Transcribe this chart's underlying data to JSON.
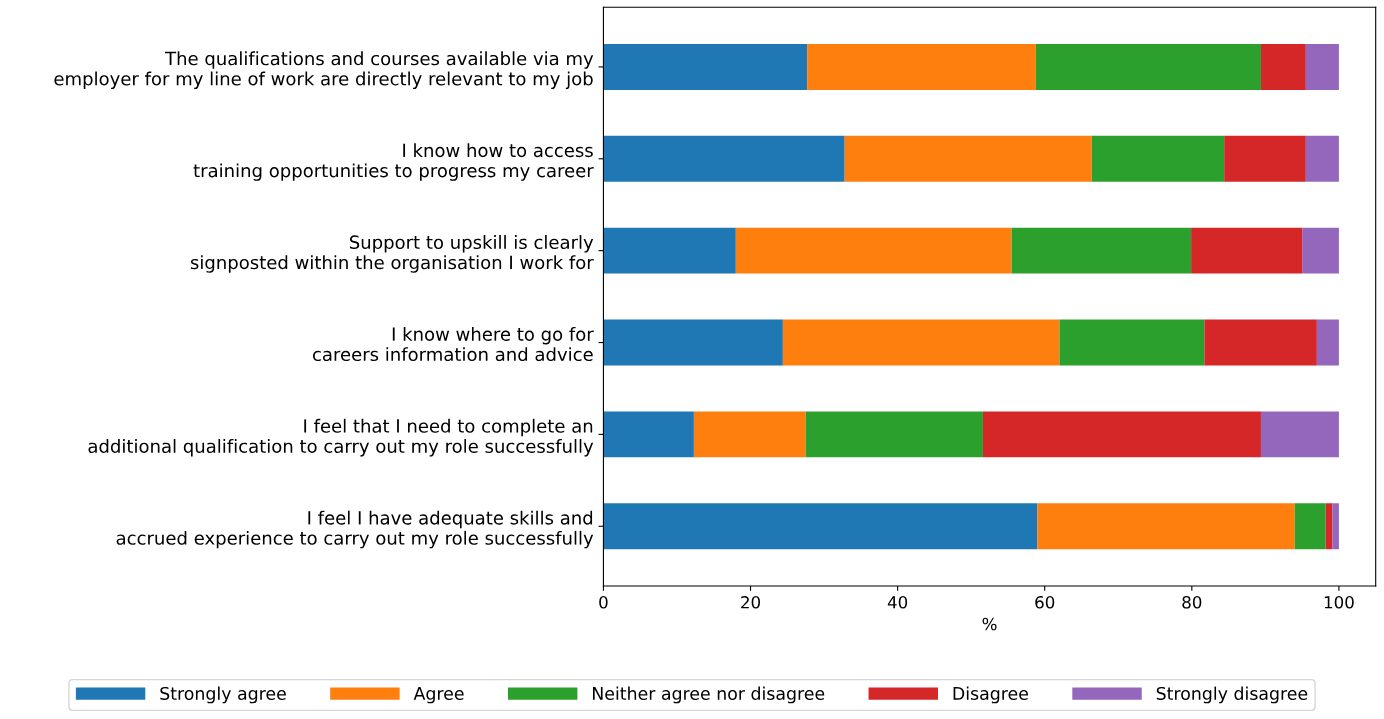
{
  "chart_data": {
    "type": "bar",
    "orientation": "horizontal",
    "stacked": true,
    "xlabel": "%",
    "categories": [
      "The qualifications and courses available via my\nemployer for my line of work are directly relevant to my job",
      "I know how to access\ntraining opportunities to progress my career",
      "Support to upskill is clearly\nsignposted within the organisation I work for",
      "I know where to go for\ncareers information and advice",
      "I feel that I need to complete an\nadditional qualification to carry out my role successfully",
      "I feel I have adequate skills and\naccrued experience to carry out my role successfully"
    ],
    "series": [
      {
        "name": "Strongly agree",
        "color": "#1f77b4",
        "values": [
          27.7,
          32.8,
          18.0,
          24.4,
          12.3,
          59.0
        ]
      },
      {
        "name": "Agree",
        "color": "#ff7f0e",
        "values": [
          31.1,
          33.6,
          37.5,
          37.6,
          15.2,
          35.0
        ]
      },
      {
        "name": "Neither agree nor disagree",
        "color": "#2ca02c",
        "values": [
          30.6,
          18.0,
          24.4,
          19.7,
          24.1,
          4.2
        ]
      },
      {
        "name": "Disagree",
        "color": "#d62728",
        "values": [
          6.1,
          11.1,
          15.1,
          15.3,
          37.8,
          0.9
        ]
      },
      {
        "name": "Strongly disagree",
        "color": "#9467bd",
        "values": [
          4.5,
          4.5,
          5.0,
          3.0,
          10.6,
          0.9
        ]
      }
    ],
    "xlim": [
      0,
      105
    ],
    "xticks": [
      0,
      20,
      40,
      60,
      80,
      100
    ],
    "grid": false,
    "legend": "bottom"
  }
}
